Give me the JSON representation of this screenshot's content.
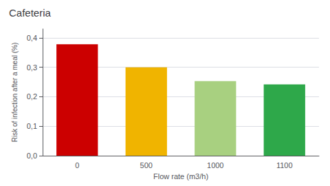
{
  "chart_data": {
    "type": "bar",
    "title": "Cafeteria",
    "categories": [
      "0",
      "500",
      "1000",
      "1100"
    ],
    "values": [
      0.378,
      0.3,
      0.253,
      0.242
    ],
    "colors": [
      "#cc0000",
      "#f0b400",
      "#a8d080",
      "#2ea84a"
    ],
    "xlabel": "Flow rate (m3/h)",
    "ylabel": "Risk of infection after a meal (%)",
    "ylim": [
      0,
      0.43
    ],
    "yticks": [
      {
        "value": 0.0,
        "label": "0,0"
      },
      {
        "value": 0.1,
        "label": "0,1"
      },
      {
        "value": 0.2,
        "label": "0,2"
      },
      {
        "value": 0.3,
        "label": "0,3"
      },
      {
        "value": 0.4,
        "label": "0,4"
      }
    ],
    "grid": true
  }
}
